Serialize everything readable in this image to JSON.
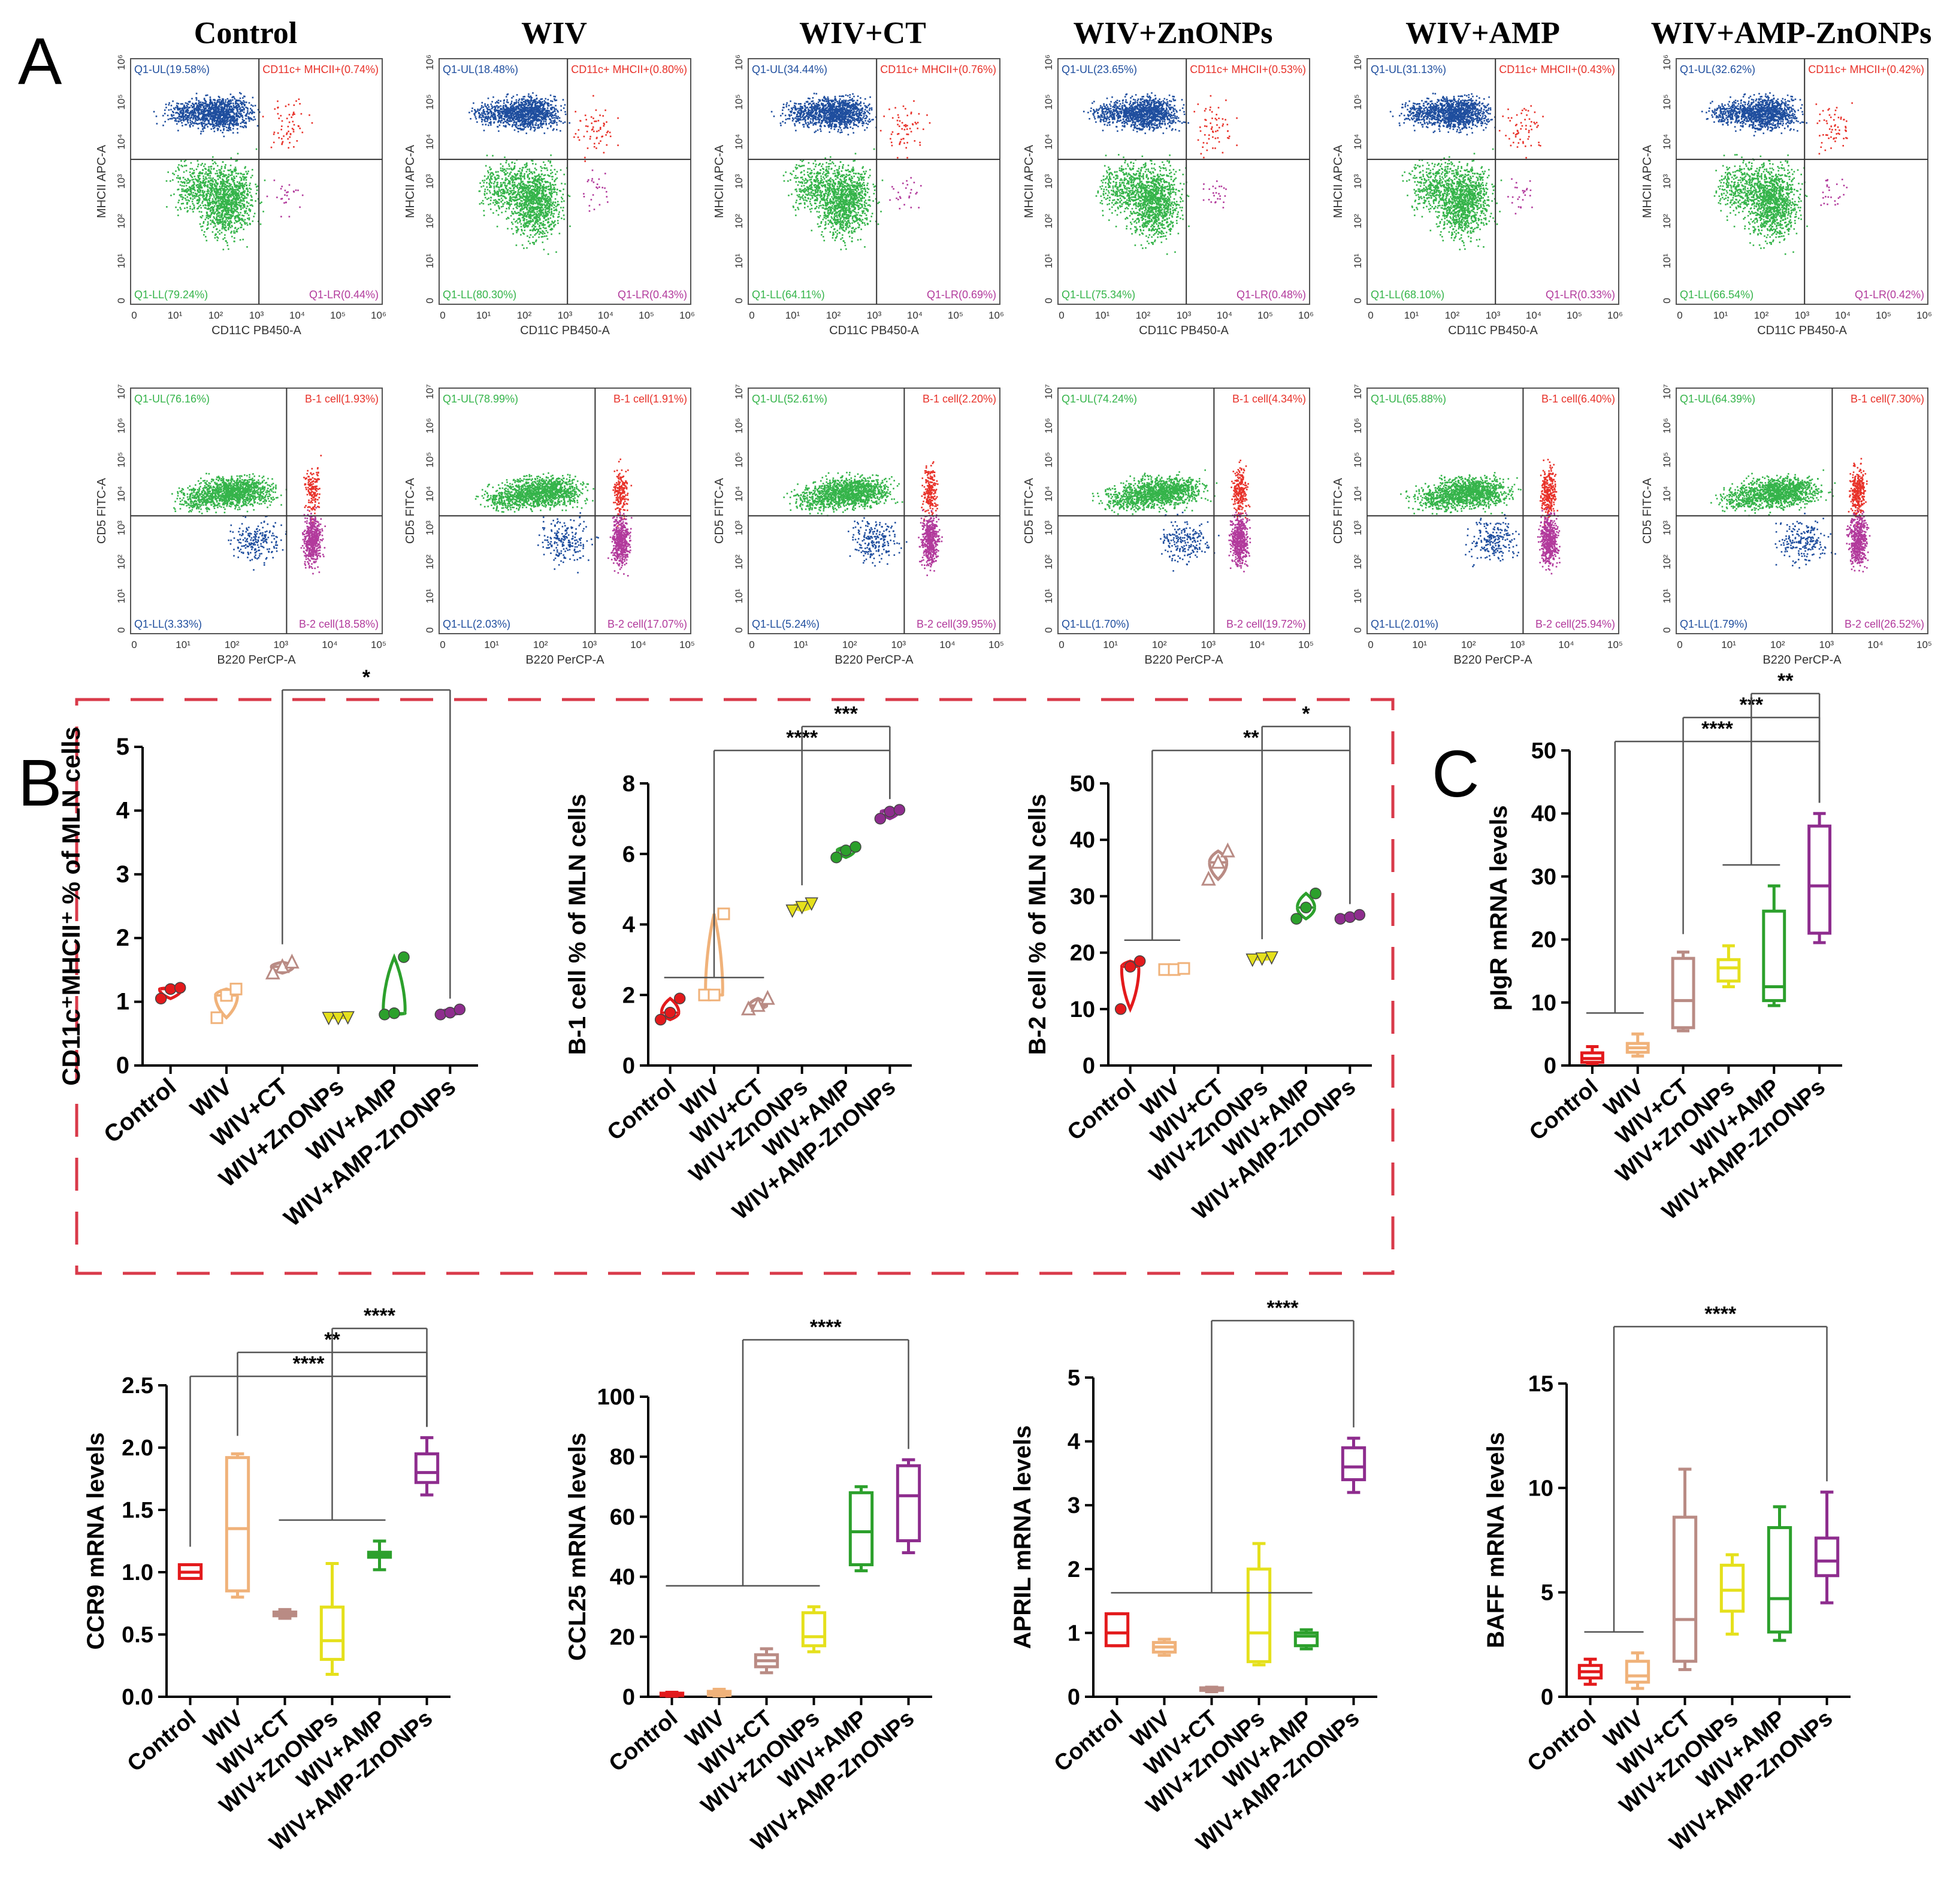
{
  "panels": {
    "A": "A",
    "B": "B",
    "C": "C"
  },
  "groups": [
    "Control",
    "WIV",
    "WIV+CT",
    "WIV+ZnONPs",
    "WIV+AMP",
    "WIV+AMP-ZnONPs"
  ],
  "flow": {
    "ticks": [
      "0",
      "10¹",
      "10²",
      "10³",
      "10⁴",
      "10⁵",
      "10⁶"
    ],
    "ticks_y2": [
      "0",
      "10¹",
      "10²",
      "10³",
      "10⁴",
      "10⁵",
      "10⁶",
      "10⁷"
    ],
    "ticks_x2": [
      "0",
      "10¹",
      "10²",
      "10³",
      "10⁴",
      "10⁵"
    ],
    "row1": {
      "xlabel": "CD11C PB450-A",
      "ylabel": "MHCII APC-A",
      "ul_prefix": "Q1-UL",
      "ur_prefix": "CD11c+ MHCII+",
      "ll_prefix": "Q1-LL",
      "lr_prefix": "Q1-LR",
      "plots": [
        {
          "ul": "Q1-UL(19.58%)",
          "ur": "CD11c+ MHCII+(0.74%)",
          "ll": "Q1-LL(79.24%)",
          "lr": "Q1-LR(0.44%)"
        },
        {
          "ul": "Q1-UL(18.48%)",
          "ur": "CD11c+ MHCII+(0.80%)",
          "ll": "Q1-LL(80.30%)",
          "lr": "Q1-LR(0.43%)"
        },
        {
          "ul": "Q1-UL(34.44%)",
          "ur": "CD11c+ MHCII+(0.76%)",
          "ll": "Q1-LL(64.11%)",
          "lr": "Q1-LR(0.69%)"
        },
        {
          "ul": "Q1-UL(23.65%)",
          "ur": "CD11c+ MHCII+(0.53%)",
          "ll": "Q1-LL(75.34%)",
          "lr": "Q1-LR(0.48%)"
        },
        {
          "ul": "Q1-UL(31.13%)",
          "ur": "CD11c+ MHCII+(0.43%)",
          "ll": "Q1-LL(68.10%)",
          "lr": "Q1-LR(0.33%)"
        },
        {
          "ul": "Q1-UL(32.62%)",
          "ur": "CD11c+ MHCII+(0.42%)",
          "ll": "Q1-LL(66.54%)",
          "lr": "Q1-LR(0.42%)"
        }
      ]
    },
    "row2": {
      "xlabel": "B220 PerCP-A",
      "ylabel": "CD5 FITC-A",
      "plots": [
        {
          "ul": "Q1-UL(76.16%)",
          "ur": "B-1 cell(1.93%)",
          "ll": "Q1-LL(3.33%)",
          "lr": "B-2 cell(18.58%)"
        },
        {
          "ul": "Q1-UL(78.99%)",
          "ur": "B-1 cell(1.91%)",
          "ll": "Q1-LL(2.03%)",
          "lr": "B-2 cell(17.07%)"
        },
        {
          "ul": "Q1-UL(52.61%)",
          "ur": "B-1 cell(2.20%)",
          "ll": "Q1-LL(5.24%)",
          "lr": "B-2 cell(39.95%)"
        },
        {
          "ul": "Q1-UL(74.24%)",
          "ur": "B-1 cell(4.34%)",
          "ll": "Q1-LL(1.70%)",
          "lr": "B-2 cell(19.72%)"
        },
        {
          "ul": "Q1-UL(65.88%)",
          "ur": "B-1 cell(6.40%)",
          "ll": "Q1-LL(2.01%)",
          "lr": "B-2 cell(25.94%)"
        },
        {
          "ul": "Q1-UL(64.39%)",
          "ur": "B-1 cell(7.30%)",
          "ll": "Q1-LL(1.79%)",
          "lr": "B-2 cell(26.52%)"
        }
      ]
    }
  },
  "chart_data": [
    {
      "id": "cd11c",
      "type": "violin",
      "ylabel": "CD11c⁺MHCII⁺ % of MLN cells",
      "ylim": [
        0,
        5
      ],
      "yticks": [
        "0",
        "1",
        "2",
        "3",
        "4",
        "5"
      ],
      "categories": [
        "Control",
        "WIV",
        "WIV+CT",
        "WIV+ZnONPs",
        "WIV+AMP",
        "WIV+AMP-ZnONPs"
      ],
      "values": [
        [
          1.05,
          1.2,
          1.22
        ],
        [
          0.75,
          1.1,
          1.2
        ],
        [
          1.45,
          1.55,
          1.62
        ],
        [
          0.75,
          0.75,
          0.76
        ],
        [
          0.8,
          0.82,
          1.7
        ],
        [
          0.8,
          0.83,
          0.88
        ]
      ],
      "significance": [
        {
          "from": 2,
          "to": 5,
          "label": "*"
        }
      ]
    },
    {
      "id": "b1",
      "type": "violin",
      "ylabel": "B-1 cell % of MLN cells",
      "ylim": [
        0,
        8
      ],
      "yticks": [
        "0",
        "2",
        "4",
        "6",
        "8"
      ],
      "categories": [
        "Control",
        "WIV",
        "WIV+CT",
        "WIV+ZnONPs",
        "WIV+AMP",
        "WIV+AMP-ZnONPs"
      ],
      "values": [
        [
          1.3,
          1.5,
          1.9
        ],
        [
          2.0,
          2.0,
          4.3
        ],
        [
          1.6,
          1.7,
          1.9
        ],
        [
          4.4,
          4.5,
          4.6
        ],
        [
          5.9,
          6.1,
          6.2
        ],
        [
          7.0,
          7.2,
          7.25
        ]
      ],
      "significance": [
        {
          "from": [
            0,
            2
          ],
          "to": 5,
          "label": "****"
        },
        {
          "from": 3,
          "to": 5,
          "label": "***"
        }
      ]
    },
    {
      "id": "b2",
      "type": "violin",
      "ylabel": "B-2 cell % of MLN cells",
      "ylim": [
        0,
        50
      ],
      "yticks": [
        "0",
        "10",
        "20",
        "30",
        "40",
        "50"
      ],
      "categories": [
        "Control",
        "WIV",
        "WIV+CT",
        "WIV+ZnONPs",
        "WIV+AMP",
        "WIV+AMP-ZnONPs"
      ],
      "values": [
        [
          10,
          17.5,
          18.5
        ],
        [
          17,
          17,
          17.2
        ],
        [
          33,
          36,
          38
        ],
        [
          18.8,
          19,
          19.2
        ],
        [
          26,
          28,
          30.5
        ],
        [
          26,
          26.3,
          26.7
        ]
      ],
      "significance": [
        {
          "from": [
            0,
            1
          ],
          "to": 5,
          "label": "**"
        },
        {
          "from": 3,
          "to": 5,
          "label": "*"
        }
      ]
    },
    {
      "id": "pigr",
      "type": "box",
      "ylabel": "pIgR mRNA levels",
      "ylim": [
        0,
        50
      ],
      "yticks": [
        "0",
        "10",
        "20",
        "30",
        "40",
        "50"
      ],
      "categories": [
        "Control",
        "WIV",
        "WIV+CT",
        "WIV+ZnONPs",
        "WIV+AMP",
        "WIV+AMP-ZnONPs"
      ],
      "boxes": [
        [
          0.3,
          0.5,
          1.1,
          2,
          3
        ],
        [
          1.5,
          2.1,
          2.8,
          3.5,
          5
        ],
        [
          5.5,
          6,
          10.3,
          17,
          18
        ],
        [
          12.5,
          13.4,
          15.5,
          16.8,
          19
        ],
        [
          9.5,
          10.3,
          12.5,
          24.5,
          28.5
        ],
        [
          19.5,
          21,
          28.5,
          38,
          40
        ]
      ],
      "significance": [
        {
          "from": [
            0,
            1
          ],
          "to": 5,
          "label": "****"
        },
        {
          "from": 2,
          "to": 5,
          "label": "***"
        },
        {
          "from": [
            3,
            4
          ],
          "to": 5,
          "label": "**"
        }
      ]
    },
    {
      "id": "ccr9",
      "type": "box",
      "ylabel": "CCR9 mRNA levels",
      "ylim": [
        0,
        2.5
      ],
      "yticks": [
        "0.0",
        "0.5",
        "1.0",
        "1.5",
        "2.0",
        "2.5"
      ],
      "categories": [
        "Control",
        "WIV",
        "WIV+CT",
        "WIV+ZnONPs",
        "WIV+AMP",
        "WIV+AMP-ZnONPs"
      ],
      "boxes": [
        [
          0.95,
          0.95,
          1.0,
          1.06,
          1.06
        ],
        [
          0.8,
          0.85,
          1.35,
          1.92,
          1.95
        ],
        [
          0.63,
          0.65,
          0.67,
          0.68,
          0.7
        ],
        [
          0.18,
          0.3,
          0.45,
          0.72,
          1.07
        ],
        [
          1.02,
          1.12,
          1.14,
          1.16,
          1.25
        ],
        [
          1.62,
          1.72,
          1.8,
          1.95,
          2.08
        ]
      ],
      "significance": [
        {
          "from": 0,
          "to": 5,
          "label": "****"
        },
        {
          "from": 1,
          "to": 5,
          "label": "**"
        },
        {
          "from": [
            2,
            4
          ],
          "to": 5,
          "label": "****"
        }
      ]
    },
    {
      "id": "ccl25",
      "type": "box",
      "ylabel": "CCL25 mRNA levels",
      "ylim": [
        0,
        100
      ],
      "yticks": [
        "0",
        "20",
        "40",
        "60",
        "80",
        "100"
      ],
      "categories": [
        "Control",
        "WIV",
        "WIV+CT",
        "WIV+ZnONPs",
        "WIV+AMP",
        "WIV+AMP-ZnONPs"
      ],
      "boxes": [
        [
          0.2,
          0.4,
          0.8,
          1.2,
          1.5
        ],
        [
          0.3,
          0.5,
          1,
          1.8,
          2.5
        ],
        [
          8,
          10,
          12,
          14,
          16
        ],
        [
          15,
          17,
          20,
          28,
          30
        ],
        [
          42,
          44,
          55,
          68,
          70
        ],
        [
          48,
          52,
          67,
          77,
          79
        ]
      ],
      "significance": [
        {
          "from": [
            0,
            3
          ],
          "to": 5,
          "label": "****"
        }
      ]
    },
    {
      "id": "april",
      "type": "box",
      "ylabel": "APRIL mRNA levels",
      "ylim": [
        0,
        5
      ],
      "yticks": [
        "0",
        "1",
        "2",
        "3",
        "4",
        "5"
      ],
      "categories": [
        "Control",
        "WIV",
        "WIV+CT",
        "WIV+ZnONPs",
        "WIV+AMP",
        "WIV+AMP-ZnONPs"
      ],
      "boxes": [
        [
          0.8,
          0.8,
          1.0,
          1.3,
          1.3
        ],
        [
          0.65,
          0.7,
          0.78,
          0.85,
          0.9
        ],
        [
          0.08,
          0.1,
          0.12,
          0.14,
          0.15
        ],
        [
          0.5,
          0.55,
          1.0,
          2.0,
          2.4
        ],
        [
          0.75,
          0.8,
          0.95,
          1.0,
          1.05
        ],
        [
          3.2,
          3.4,
          3.6,
          3.9,
          4.05
        ]
      ],
      "significance": [
        {
          "from": [
            0,
            4
          ],
          "to": 5,
          "label": "****"
        }
      ]
    },
    {
      "id": "baff",
      "type": "box",
      "ylabel": "BAFF mRNA levels",
      "ylim": [
        0,
        15
      ],
      "yticks": [
        "0",
        "5",
        "10",
        "15"
      ],
      "categories": [
        "Control",
        "WIV",
        "WIV+CT",
        "WIV+ZnONPs",
        "WIV+AMP",
        "WIV+AMP-ZnONPs"
      ],
      "boxes": [
        [
          0.6,
          0.9,
          1.2,
          1.5,
          1.8
        ],
        [
          0.4,
          0.7,
          1.0,
          1.7,
          2.1
        ],
        [
          1.3,
          1.7,
          3.7,
          8.6,
          10.9
        ],
        [
          3.0,
          4.1,
          5.1,
          6.3,
          6.8
        ],
        [
          2.7,
          3.1,
          4.7,
          8.1,
          9.1
        ],
        [
          4.5,
          5.8,
          6.5,
          7.6,
          9.8
        ]
      ],
      "significance": [
        {
          "from": [
            0,
            1
          ],
          "to": 5,
          "label": "****"
        }
      ]
    }
  ],
  "colors": {
    "Control": "#e31a1c",
    "WIV": "#f0b27a",
    "WIV+CT": "#b98b84",
    "WIV+ZnONPs": "#e5e01c",
    "WIV+AMP": "#2ca02c",
    "WIV+AMP-ZnONPs": "#8e2d8e",
    "flow_blue": "#1f4e9e",
    "flow_green": "#35b44a",
    "flow_red": "#e8322a",
    "flow_purple": "#b23a9c",
    "dash": "#d93a4a"
  }
}
